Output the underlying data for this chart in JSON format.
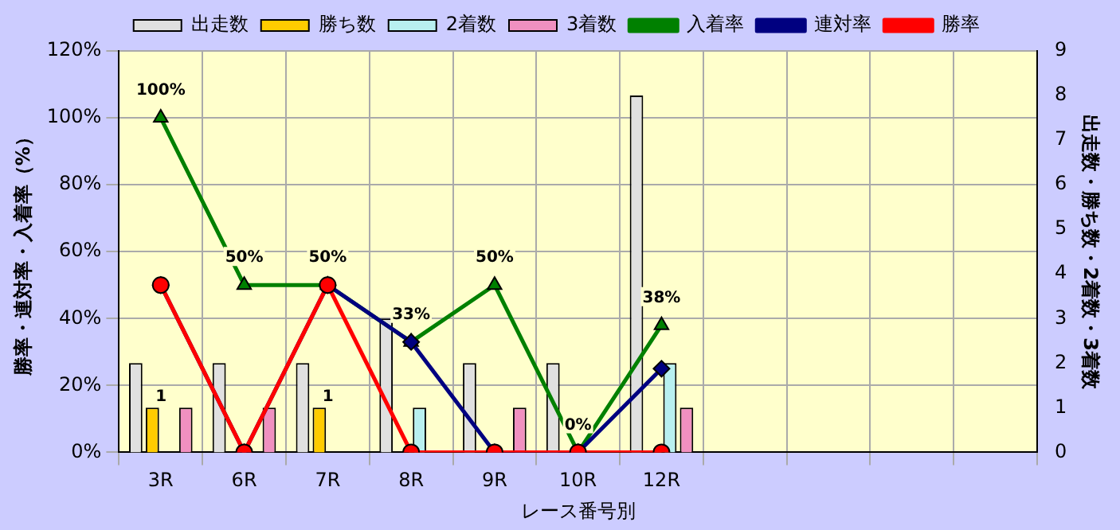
{
  "chart_data": {
    "type": "bar",
    "xlabel": "レース番号別",
    "ylabel": "勝率・連対率・入着率（%）",
    "y2label": "出走数・勝ち数・2着数・3着数",
    "categories": [
      "3R",
      "6R",
      "7R",
      "8R",
      "9R",
      "10R",
      "12R",
      null,
      null,
      null,
      null
    ],
    "series": [
      {
        "name": "出走数",
        "axis": "y2",
        "color": "#e0e0e0",
        "values": [
          2,
          2,
          2,
          3,
          2,
          2,
          8,
          null,
          null,
          null,
          null
        ]
      },
      {
        "name": "勝ち数",
        "axis": "y2",
        "color": "#ffcc00",
        "values": [
          1,
          0,
          1,
          0,
          0,
          0,
          0,
          null,
          null,
          null,
          null
        ],
        "value_labels": [
          "1",
          null,
          "1",
          null,
          null,
          null,
          null,
          null,
          null,
          null,
          null
        ]
      },
      {
        "name": "2着数",
        "axis": "y2",
        "color": "#b8f0f0",
        "values": [
          0,
          0,
          0,
          1,
          0,
          0,
          2,
          null,
          null,
          null,
          null
        ]
      },
      {
        "name": "3着数",
        "axis": "y2",
        "color": "#f090c0",
        "values": [
          1,
          1,
          0,
          0,
          1,
          0,
          1,
          null,
          null,
          null,
          null
        ]
      },
      {
        "name": "入着率",
        "type": "line",
        "marker": "triangle",
        "color": "#008000",
        "values": [
          100,
          50,
          50,
          33,
          50,
          0,
          38,
          null,
          null,
          null,
          null
        ],
        "value_labels": [
          "100%",
          "50%",
          "50%",
          "33%",
          "50%",
          "0%",
          "38%",
          null,
          null,
          null,
          null
        ]
      },
      {
        "name": "連対率",
        "type": "line",
        "marker": "diamond",
        "color": "#000080",
        "values": [
          50,
          0,
          50,
          33,
          0,
          0,
          25,
          null,
          null,
          null,
          null
        ]
      },
      {
        "name": "勝率",
        "type": "line",
        "marker": "circle",
        "color": "#ff0000",
        "values": [
          50,
          0,
          50,
          0,
          0,
          0,
          0,
          null,
          null,
          null,
          null
        ]
      }
    ],
    "ylim": [
      0,
      120
    ],
    "yticks": [
      {
        "value": 0,
        "label": "0%"
      },
      {
        "value": 20,
        "label": "20%"
      },
      {
        "value": 40,
        "label": "40%"
      },
      {
        "value": 60,
        "label": "60%"
      },
      {
        "value": 80,
        "label": "80%"
      },
      {
        "value": 100,
        "label": "100%"
      },
      {
        "value": 120,
        "label": "120%"
      }
    ],
    "y2lim": [
      0,
      9
    ],
    "y2ticks": [
      0,
      1,
      2,
      3,
      4,
      5,
      6,
      7,
      8,
      9
    ],
    "grid": true,
    "legend": "top"
  }
}
